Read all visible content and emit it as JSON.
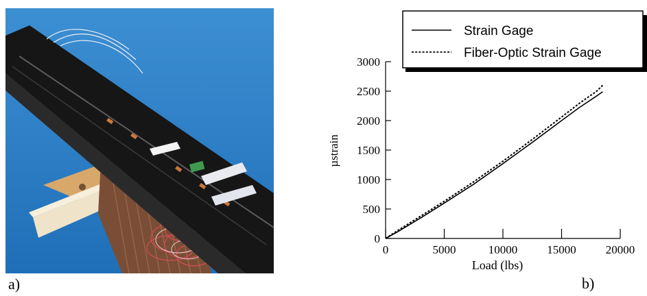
{
  "panels": {
    "a_label": "a)",
    "b_label": "b)"
  },
  "photo": {
    "background": "#2b7ec4",
    "beam_color": "#151515",
    "wire_color": "#c9303f"
  },
  "chart_data": {
    "type": "line",
    "title": "",
    "xlabel": "Load (lbs)",
    "ylabel": "µstrain",
    "xlim": [
      0,
      20000
    ],
    "ylim": [
      0,
      3000
    ],
    "xticks": [
      0,
      5000,
      10000,
      15000,
      20000
    ],
    "yticks": [
      0,
      500,
      1000,
      1500,
      2000,
      2500,
      3000
    ],
    "grid": false,
    "legend": "top-right",
    "series": [
      {
        "name": "Strain Gage",
        "style": "solid",
        "x": [
          0,
          1000,
          3000,
          5000,
          7500,
          10000,
          12500,
          15000,
          16500,
          18000,
          18500
        ],
        "y": [
          0,
          110,
          350,
          600,
          920,
          1270,
          1630,
          2000,
          2220,
          2420,
          2490
        ]
      },
      {
        "name": "Fiber-Optic Strain Gage",
        "style": "dotted",
        "x": [
          0,
          1000,
          3000,
          5000,
          7500,
          10000,
          12500,
          15000,
          16500,
          18000,
          18500
        ],
        "y": [
          0,
          130,
          380,
          630,
          960,
          1310,
          1680,
          2060,
          2290,
          2500,
          2600
        ]
      }
    ]
  }
}
